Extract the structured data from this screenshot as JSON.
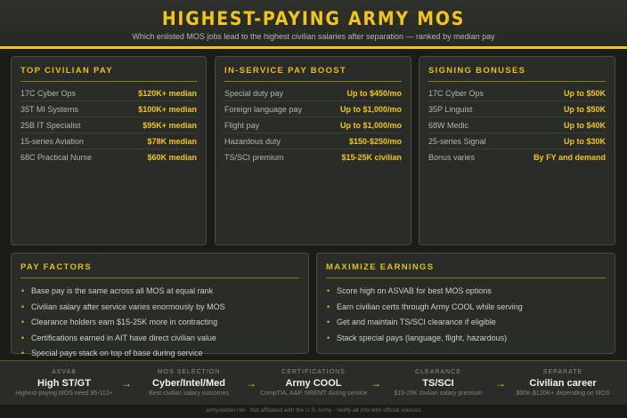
{
  "header": {
    "title": "HIGHEST-PAYING ARMY MOS",
    "subtitle": "Which enlisted MOS jobs lead to the highest civilian salaries after separation — ranked by median pay"
  },
  "colors": {
    "accent": "#f3c517",
    "background": "#1b1c18",
    "panel": "#2a2c27"
  },
  "top_civilian_pay": {
    "title": "TOP CIVILIAN PAY",
    "rows": [
      {
        "k": "17C Cyber Ops",
        "v": "$120K+ median"
      },
      {
        "k": "35T MI Systems",
        "v": "$100K+ median"
      },
      {
        "k": "25B IT Specialist",
        "v": "$95K+ median"
      },
      {
        "k": "15-series Aviation",
        "v": "$78K median"
      },
      {
        "k": "68C Practical Nurse",
        "v": "$60K median"
      }
    ]
  },
  "in_service_pay": {
    "title": "IN-SERVICE PAY BOOST",
    "rows": [
      {
        "k": "Special duty pay",
        "v": "Up to $450/mo"
      },
      {
        "k": "Foreign language pay",
        "v": "Up to $1,000/mo"
      },
      {
        "k": "Flight pay",
        "v": "Up to $1,000/mo"
      },
      {
        "k": "Hazardous duty",
        "v": "$150-$250/mo"
      },
      {
        "k": "TS/SCI premium",
        "v": "$15-25K civilian"
      }
    ]
  },
  "signing_bonuses": {
    "title": "SIGNING BONUSES",
    "rows": [
      {
        "k": "17C Cyber Ops",
        "v": "Up to $50K"
      },
      {
        "k": "35P Linguist",
        "v": "Up to $50K"
      },
      {
        "k": "68W Medic",
        "v": "Up to $40K"
      },
      {
        "k": "25-series Signal",
        "v": "Up to $30K"
      },
      {
        "k": "Bonus varies",
        "v": "By FY and demand"
      }
    ]
  },
  "pay_factors": {
    "title": "PAY FACTORS",
    "items": [
      "Base pay is the same across all MOS at equal rank",
      "Civilian salary after service varies enormously by MOS",
      "Clearance holders earn $15-25K more in contracting",
      "Certifications earned in AIT have direct civilian value",
      "Special pays stack on top of base during service"
    ]
  },
  "maximize": {
    "title": "MAXIMIZE EARNINGS",
    "items": [
      "Score high on ASVAB for best MOS options",
      "Earn civilian certs through Army COOL while serving",
      "Get and maintain TS/SCI clearance if eligible",
      "Stack special pays (language, flight, hazardous)"
    ]
  },
  "flow": [
    {
      "label": "ASVAB",
      "value": "High ST/GT",
      "desc": "Highest-paying MOS need 95-112+"
    },
    {
      "label": "MOS SELECTION",
      "value": "Cyber/Intel/Med",
      "desc": "Best civilian salary outcomes"
    },
    {
      "label": "CERTIFICATIONS",
      "value": "Army COOL",
      "desc": "CompTIA, A&P, NREMT during service"
    },
    {
      "label": "CLEARANCE",
      "value": "TS/SCI",
      "desc": "$15-25K civilian salary premium"
    },
    {
      "label": "SEPARATE",
      "value": "Civilian career",
      "desc": "$60K-$120K+ depending on MOS"
    }
  ],
  "flow_arrow": "→",
  "footer": "armysoldier.net · Not affiliated with the U.S. Army · Verify all info with official sources"
}
